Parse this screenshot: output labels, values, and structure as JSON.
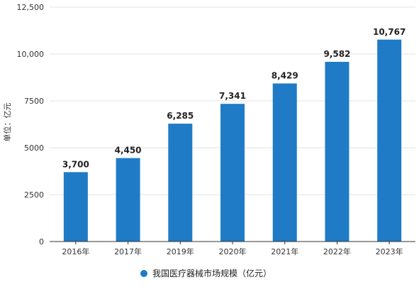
{
  "chart_data": {
    "type": "bar",
    "title": "",
    "xlabel": "",
    "ylabel": "单位：亿元",
    "categories": [
      "2016年",
      "2017年",
      "2019年",
      "2020年",
      "2021年",
      "2022年",
      "2023年"
    ],
    "series": [
      {
        "name": "我国医疗器械市场规模（亿元）",
        "values": [
          3700,
          4450,
          6285,
          7341,
          8429,
          9582,
          10767
        ],
        "data_labels": [
          "3,700",
          "4,450",
          "6,285",
          "7,341",
          "8,429",
          "9,582",
          "10,767"
        ],
        "color": "#1f7bc6"
      }
    ],
    "ylim": [
      0,
      12500
    ],
    "yticks": [
      0,
      2500,
      5000,
      7500,
      10000,
      12500
    ],
    "ytick_labels": [
      "0",
      "2500",
      "5000",
      "7500",
      "10,000",
      "12,500"
    ],
    "grid": true,
    "legend_position": "bottom"
  },
  "colors": {
    "bar": "#1f7bc6",
    "grid": "#e3e3e3",
    "axis": "#333333"
  }
}
